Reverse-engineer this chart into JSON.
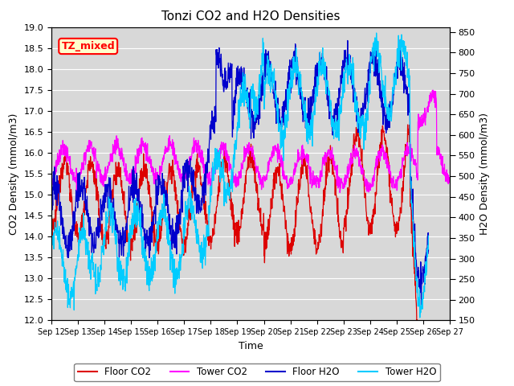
{
  "title": "Tonzi CO2 and H2O Densities",
  "xlabel": "Time",
  "ylabel_left": "CO2 Density (mmol/m3)",
  "ylabel_right": "H2O Density (mmol/m3)",
  "ylim_left": [
    12.0,
    19.0
  ],
  "ylim_right": [
    150,
    862
  ],
  "annotation_text": "TZ_mixed",
  "annotation_bg": "#FFFFCC",
  "annotation_border": "red",
  "floor_co2_color": "#dd0000",
  "tower_co2_color": "#ff00ff",
  "floor_h2o_color": "#0000cc",
  "tower_h2o_color": "#00ccff",
  "legend_labels": [
    "Floor CO2",
    "Tower CO2",
    "Floor H2O",
    "Tower H2O"
  ],
  "plot_bg_color": "#d8d8d8",
  "fig_bg_color": "#ffffff",
  "xtick_labels": [
    "Sep 12",
    "Sep 13",
    "Sep 14",
    "Sep 15",
    "Sep 16",
    "Sep 17",
    "Sep 18",
    "Sep 19",
    "Sep 20",
    "Sep 21",
    "Sep 22",
    "Sep 23",
    "Sep 24",
    "Sep 25",
    "Sep 26",
    "Sep 27"
  ],
  "n_points": 1440,
  "title_fontsize": 11,
  "seed": 12345
}
